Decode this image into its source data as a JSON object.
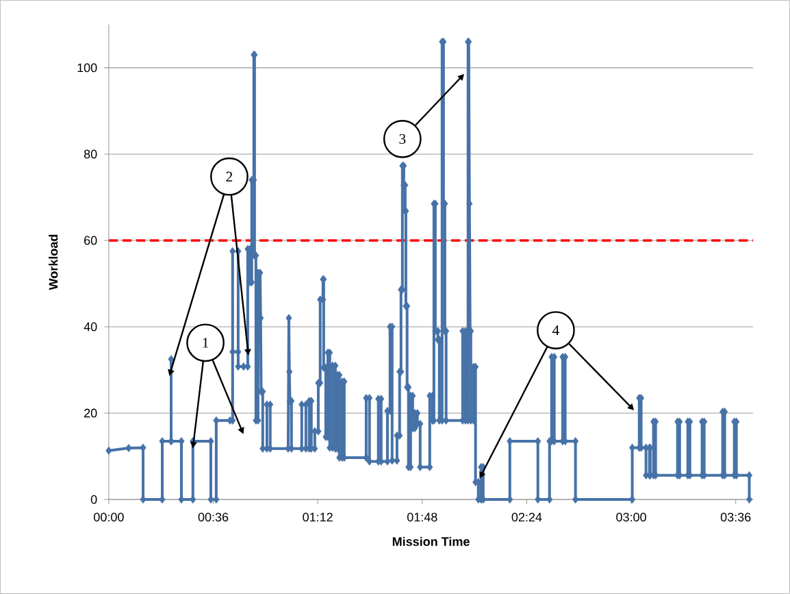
{
  "chart_data": {
    "type": "line",
    "xlabel": "Mission Time",
    "ylabel": "Workload",
    "x": [
      0,
      0.114,
      0.197,
      0.197,
      0.307,
      0.307,
      0.358,
      0.358,
      0.358,
      0.417,
      0.417,
      0.483,
      0.483,
      0.586,
      0.586,
      0.617,
      0.617,
      0.696,
      0.711,
      0.711,
      0.711,
      0.743,
      0.743,
      0.743,
      0.774,
      0.798,
      0.798,
      0.81,
      0.81,
      0.821,
      0.821,
      0.833,
      0.833,
      0.837,
      0.837,
      0.845,
      0.845,
      0.857,
      0.857,
      0.869,
      0.872,
      0.875,
      0.884,
      0.884,
      0.908,
      0.908,
      0.927,
      0.927,
      1.03,
      1.034,
      1.037,
      1.04,
      1.049,
      1.049,
      1.108,
      1.108,
      1.132,
      1.132,
      1.151,
      1.151,
      1.163,
      1.163,
      1.183,
      1.183,
      1.203,
      1.203,
      1.214,
      1.214,
      1.23,
      1.23,
      1.234,
      1.234,
      1.246,
      1.246,
      1.258,
      1.258,
      1.269,
      1.269,
      1.285,
      1.285,
      1.301,
      1.301,
      1.313,
      1.313,
      1.324,
      1.324,
      1.34,
      1.34,
      1.352,
      1.352,
      1.478,
      1.478,
      1.497,
      1.497,
      1.548,
      1.548,
      1.564,
      1.564,
      1.6,
      1.6,
      1.615,
      1.615,
      1.627,
      1.627,
      1.655,
      1.655,
      1.67,
      1.67,
      1.678,
      1.678,
      1.686,
      1.686,
      1.694,
      1.694,
      1.702,
      1.702,
      1.706,
      1.706,
      1.713,
      1.713,
      1.721,
      1.721,
      1.733,
      1.733,
      1.745,
      1.745,
      1.757,
      1.757,
      1.772,
      1.772,
      1.788,
      1.788,
      1.843,
      1.843,
      1.859,
      1.859,
      1.867,
      1.867,
      1.875,
      1.875,
      1.89,
      1.89,
      1.898,
      1.898,
      1.914,
      1.914,
      1.922,
      1.922,
      1.93,
      1.93,
      1.937,
      1.937,
      2.032,
      2.032,
      2.048,
      2.048,
      2.063,
      2.063,
      2.067,
      2.071,
      2.075,
      2.079,
      2.079,
      2.095,
      2.095,
      2.106,
      2.106,
      2.122,
      2.122,
      2.138,
      2.138,
      2.15,
      2.15,
      2.303,
      2.303,
      2.464,
      2.464,
      2.531,
      2.531,
      2.543,
      2.543,
      2.558,
      2.558,
      2.606,
      2.606,
      2.621,
      2.621,
      2.68,
      2.68,
      3.006,
      3.006,
      3.046,
      3.046,
      3.057,
      3.057,
      3.085,
      3.085,
      3.105,
      3.105,
      3.109,
      3.109,
      3.128,
      3.128,
      3.14,
      3.14,
      3.266,
      3.266,
      3.278,
      3.278,
      3.325,
      3.325,
      3.337,
      3.337,
      3.407,
      3.407,
      3.419,
      3.419,
      3.525,
      3.525,
      3.537,
      3.537,
      3.592,
      3.592,
      3.604,
      3.604,
      3.678,
      3.678
    ],
    "series": [
      {
        "color": "#4672a8",
        "values": [
          11.3,
          11.9,
          12,
          0,
          0,
          13.5,
          13.5,
          32.5,
          13.5,
          13.5,
          0,
          0,
          13.5,
          13.5,
          0,
          0,
          18.3,
          18.3,
          18.3,
          57.5,
          34.2,
          34.2,
          57.5,
          30.8,
          30.8,
          30.8,
          58,
          58,
          50.3,
          50.3,
          74,
          74,
          103,
          103,
          56.5,
          56.5,
          18.3,
          18.3,
          52.5,
          52.5,
          42,
          25,
          25,
          11.8,
          11.8,
          22,
          22,
          11.8,
          11.8,
          42,
          29.6,
          22.8,
          22.8,
          11.8,
          11.8,
          22,
          22,
          11.8,
          11.8,
          22.8,
          22.8,
          11.8,
          11.8,
          15.8,
          15.8,
          27,
          27,
          46.3,
          46.3,
          51,
          51,
          30.5,
          30.5,
          14.5,
          14.5,
          34,
          34,
          12,
          12,
          31,
          31,
          11.8,
          11.8,
          28.8,
          28.8,
          9.7,
          9.7,
          27.3,
          27.3,
          9.7,
          9.7,
          23.5,
          23.5,
          8.8,
          8.8,
          23.3,
          23.3,
          8.8,
          8.8,
          20.5,
          20.5,
          40,
          40,
          9,
          9,
          14.8,
          14.8,
          29.6,
          29.6,
          48.6,
          48.6,
          77.3,
          77.3,
          72.8,
          72.8,
          66.8,
          66.8,
          44.8,
          44.8,
          26,
          26,
          7.5,
          7.5,
          24,
          24,
          16.5,
          16.5,
          20,
          20,
          17.5,
          17.5,
          7.5,
          7.5,
          24,
          24,
          18.3,
          18.3,
          68.5,
          68.5,
          39,
          39,
          37,
          37,
          18.3,
          18.3,
          106,
          106,
          68.5,
          68.5,
          39,
          39,
          18.3,
          18.3,
          39,
          39,
          18.3,
          18.3,
          106,
          106,
          68.5,
          39,
          39,
          18.3,
          18.3,
          30.7,
          30.7,
          4,
          4,
          0,
          0,
          7.5,
          7.5,
          0,
          0,
          13.5,
          13.5,
          0,
          0,
          13.5,
          13.5,
          33,
          33,
          13.5,
          13.5,
          33,
          33,
          13.5,
          13.5,
          0,
          0,
          12,
          12,
          23.5,
          23.5,
          12,
          12,
          5.6,
          5.6,
          12,
          12,
          5.6,
          5.6,
          18,
          18,
          5.6,
          5.6,
          18,
          18,
          5.6,
          5.6,
          18,
          18,
          5.6,
          5.6,
          18,
          18,
          5.6,
          5.6,
          20.3,
          20.3,
          5.6,
          5.6,
          18,
          18,
          5.6,
          5.6,
          0
        ]
      }
    ],
    "xlim": [
      0,
      3.7
    ],
    "ylim": [
      0,
      110
    ],
    "xticks": [
      {
        "value": 0,
        "label": "00:00"
      },
      {
        "value": 0.6,
        "label": "00:36"
      },
      {
        "value": 1.2,
        "label": "01:12"
      },
      {
        "value": 1.8,
        "label": "01:48"
      },
      {
        "value": 2.4,
        "label": "02:24"
      },
      {
        "value": 3.0,
        "label": "03:00"
      },
      {
        "value": 3.6,
        "label": "03:36"
      }
    ],
    "yticks": [
      0,
      20,
      40,
      60,
      80,
      100
    ],
    "grid": "y",
    "marker": "diamond",
    "line_style": "solid",
    "ref_lines": [
      {
        "axis": "y",
        "value": 60,
        "color": "#ff0000",
        "line_style": "dashed"
      }
    ],
    "annotations": [
      {
        "text": "1",
        "x": 0.487,
        "y": 13.3
      },
      {
        "text": "2",
        "x": 0.358,
        "y": 30
      },
      "3",
      {
        "text": "4",
        "x": 2.146,
        "y": 6.2
      }
    ]
  }
}
